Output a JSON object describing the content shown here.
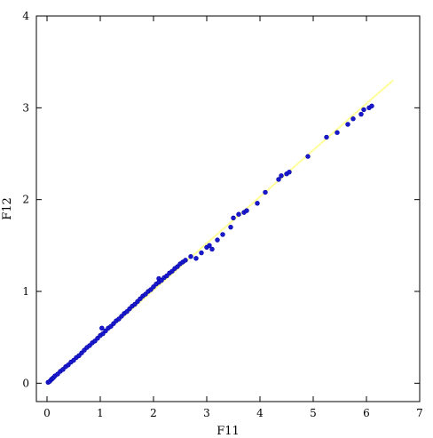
{
  "chart_data": {
    "type": "scatter",
    "title": "",
    "xlabel": "F11",
    "ylabel": "F12",
    "xlim": [
      -0.2,
      7.0
    ],
    "ylim": [
      -0.2,
      4.0
    ],
    "xticks": [
      0,
      1,
      2,
      3,
      4,
      5,
      6,
      7
    ],
    "yticks": [
      0,
      1,
      2,
      3,
      4
    ],
    "grid": false,
    "legend": "none",
    "fit_line": {
      "x": [
        0.0,
        6.5
      ],
      "y": [
        0.0,
        3.3
      ],
      "color": "#ffff99"
    },
    "marker_color": "#1a1acc",
    "points": [
      [
        0.02,
        0.01
      ],
      [
        0.05,
        0.02
      ],
      [
        0.08,
        0.04
      ],
      [
        0.1,
        0.05
      ],
      [
        0.12,
        0.06
      ],
      [
        0.15,
        0.08
      ],
      [
        0.2,
        0.1
      ],
      [
        0.25,
        0.13
      ],
      [
        0.3,
        0.15
      ],
      [
        0.35,
        0.18
      ],
      [
        0.4,
        0.2
      ],
      [
        0.45,
        0.23
      ],
      [
        0.5,
        0.25
      ],
      [
        0.55,
        0.28
      ],
      [
        0.6,
        0.3
      ],
      [
        0.65,
        0.33
      ],
      [
        0.7,
        0.36
      ],
      [
        0.75,
        0.39
      ],
      [
        0.8,
        0.41
      ],
      [
        0.85,
        0.44
      ],
      [
        0.9,
        0.46
      ],
      [
        0.95,
        0.49
      ],
      [
        1.0,
        0.52
      ],
      [
        1.05,
        0.54
      ],
      [
        1.03,
        0.6
      ],
      [
        1.1,
        0.57
      ],
      [
        1.15,
        0.6
      ],
      [
        1.2,
        0.62
      ],
      [
        1.25,
        0.65
      ],
      [
        1.3,
        0.68
      ],
      [
        1.35,
        0.7
      ],
      [
        1.4,
        0.73
      ],
      [
        1.45,
        0.76
      ],
      [
        1.5,
        0.78
      ],
      [
        1.55,
        0.81
      ],
      [
        1.6,
        0.84
      ],
      [
        1.65,
        0.86
      ],
      [
        1.7,
        0.89
      ],
      [
        1.75,
        0.92
      ],
      [
        1.8,
        0.95
      ],
      [
        1.85,
        0.97
      ],
      [
        1.9,
        1.0
      ],
      [
        1.95,
        1.02
      ],
      [
        2.0,
        1.05
      ],
      [
        2.05,
        1.08
      ],
      [
        2.1,
        1.1
      ],
      [
        2.1,
        1.14
      ],
      [
        2.15,
        1.12
      ],
      [
        2.2,
        1.15
      ],
      [
        2.25,
        1.17
      ],
      [
        2.3,
        1.2
      ],
      [
        2.35,
        1.22
      ],
      [
        2.4,
        1.25
      ],
      [
        2.45,
        1.27
      ],
      [
        2.5,
        1.3
      ],
      [
        2.55,
        1.32
      ],
      [
        2.6,
        1.34
      ],
      [
        2.7,
        1.38
      ],
      [
        2.8,
        1.36
      ],
      [
        2.9,
        1.42
      ],
      [
        3.0,
        1.48
      ],
      [
        3.05,
        1.5
      ],
      [
        3.1,
        1.46
      ],
      [
        3.2,
        1.56
      ],
      [
        3.3,
        1.62
      ],
      [
        3.45,
        1.7
      ],
      [
        3.5,
        1.8
      ],
      [
        3.6,
        1.84
      ],
      [
        3.7,
        1.86
      ],
      [
        3.75,
        1.88
      ],
      [
        3.95,
        1.96
      ],
      [
        4.1,
        2.08
      ],
      [
        4.35,
        2.22
      ],
      [
        4.4,
        2.26
      ],
      [
        4.5,
        2.28
      ],
      [
        4.55,
        2.3
      ],
      [
        4.9,
        2.47
      ],
      [
        5.25,
        2.68
      ],
      [
        5.45,
        2.73
      ],
      [
        5.65,
        2.82
      ],
      [
        5.75,
        2.88
      ],
      [
        5.9,
        2.93
      ],
      [
        5.95,
        2.98
      ],
      [
        6.05,
        3.0
      ],
      [
        6.1,
        3.02
      ]
    ]
  }
}
